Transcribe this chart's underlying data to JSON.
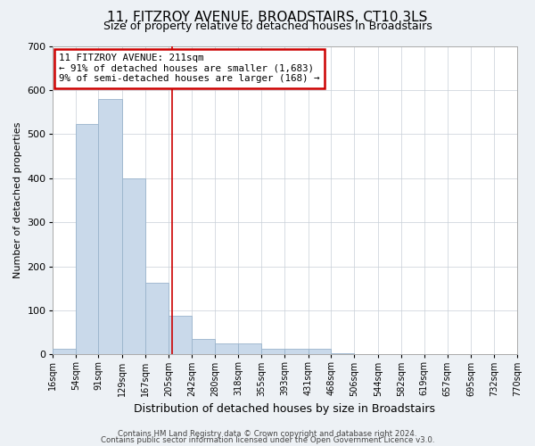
{
  "title": "11, FITZROY AVENUE, BROADSTAIRS, CT10 3LS",
  "subtitle": "Size of property relative to detached houses in Broadstairs",
  "xlabel": "Distribution of detached houses by size in Broadstairs",
  "ylabel": "Number of detached properties",
  "bin_edges": [
    16,
    54,
    91,
    129,
    167,
    205,
    242,
    280,
    318,
    355,
    393,
    431,
    468,
    506,
    544,
    582,
    619,
    657,
    695,
    732,
    770
  ],
  "bin_counts": [
    13,
    522,
    580,
    400,
    163,
    88,
    35,
    25,
    25,
    13,
    13,
    13,
    3,
    0,
    0,
    0,
    0,
    0,
    0,
    0
  ],
  "bar_color": "#c9d9ea",
  "bar_edge_color": "#9ab4cc",
  "vline_x": 211,
  "vline_color": "#cc0000",
  "annotation_line1": "11 FITZROY AVENUE: 211sqm",
  "annotation_line2": "← 91% of detached houses are smaller (1,683)",
  "annotation_line3": "9% of semi-detached houses are larger (168) →",
  "annotation_box_color": "#cc0000",
  "ylim": [
    0,
    700
  ],
  "yticks": [
    0,
    100,
    200,
    300,
    400,
    500,
    600,
    700
  ],
  "tick_labels": [
    "16sqm",
    "54sqm",
    "91sqm",
    "129sqm",
    "167sqm",
    "205sqm",
    "242sqm",
    "280sqm",
    "318sqm",
    "355sqm",
    "393sqm",
    "431sqm",
    "468sqm",
    "506sqm",
    "544sqm",
    "582sqm",
    "619sqm",
    "657sqm",
    "695sqm",
    "732sqm",
    "770sqm"
  ],
  "footer1": "Contains HM Land Registry data © Crown copyright and database right 2024.",
  "footer2": "Contains public sector information licensed under the Open Government Licence v3.0.",
  "bg_color": "#edf1f5",
  "plot_bg_color": "#ffffff",
  "grid_color": "#c8cfd8",
  "title_fontsize": 11,
  "subtitle_fontsize": 9,
  "xlabel_fontsize": 9,
  "ylabel_fontsize": 8,
  "ytick_fontsize": 8,
  "xtick_fontsize": 7
}
